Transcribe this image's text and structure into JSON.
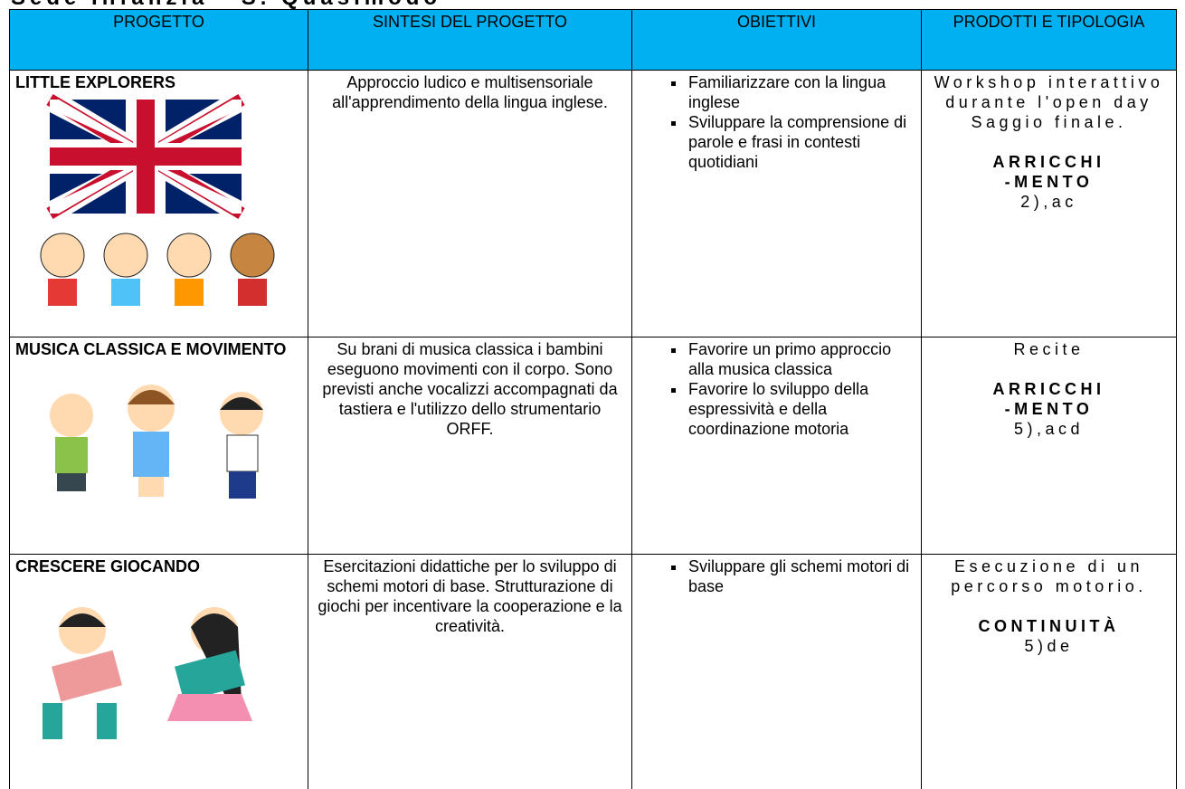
{
  "title": "Sede Infanzia - S. Quasimodo",
  "table": {
    "header": [
      "PROGETTO",
      "SINTESI DEL PROGETTO",
      "OBIETTIVI",
      "PRODOTTI E TIPOLOGIA"
    ],
    "rows": [
      {
        "project": "LITTLE EXPLORERS",
        "synthesis": "Approccio ludico e multisensoriale all'apprendimento della lingua inglese.",
        "objectives": [
          "Familiarizzare con la lingua inglese",
          "Sviluppare la comprensione di parole e frasi in contesti quotidiani"
        ],
        "products": [
          "Workshop interattivo durante l'open day",
          "Saggio finale."
        ],
        "category": [
          "ARRICCHI",
          "-MENTO"
        ],
        "code": "2),ac"
      },
      {
        "project": "MUSICA CLASSICA E MOVIMENTO",
        "synthesis": "Su brani di musica classica i bambini eseguono movimenti con il corpo. Sono previsti anche vocalizzi accompagnati da tastiera e l'utilizzo dello strumentario ORFF.",
        "objectives": [
          "Favorire un primo approccio alla musica classica",
          "Favorire lo sviluppo della espressività e della coordinazione motoria"
        ],
        "products": [
          "Recite"
        ],
        "category": [
          "ARRICCHI",
          "-MENTO"
        ],
        "code": "5),acd"
      },
      {
        "project": "CRESCERE GIOCANDO",
        "synthesis": "Esercitazioni didattiche per lo sviluppo di schemi motori di base. Strutturazione di giochi per incentivare la cooperazione e la creatività.",
        "objectives": [
          "Sviluppare gli schemi motori di base"
        ],
        "products": [
          "Esecuzione di un percorso motorio."
        ],
        "category": [
          "CONTINUITÀ"
        ],
        "code": "5)de"
      }
    ]
  }
}
